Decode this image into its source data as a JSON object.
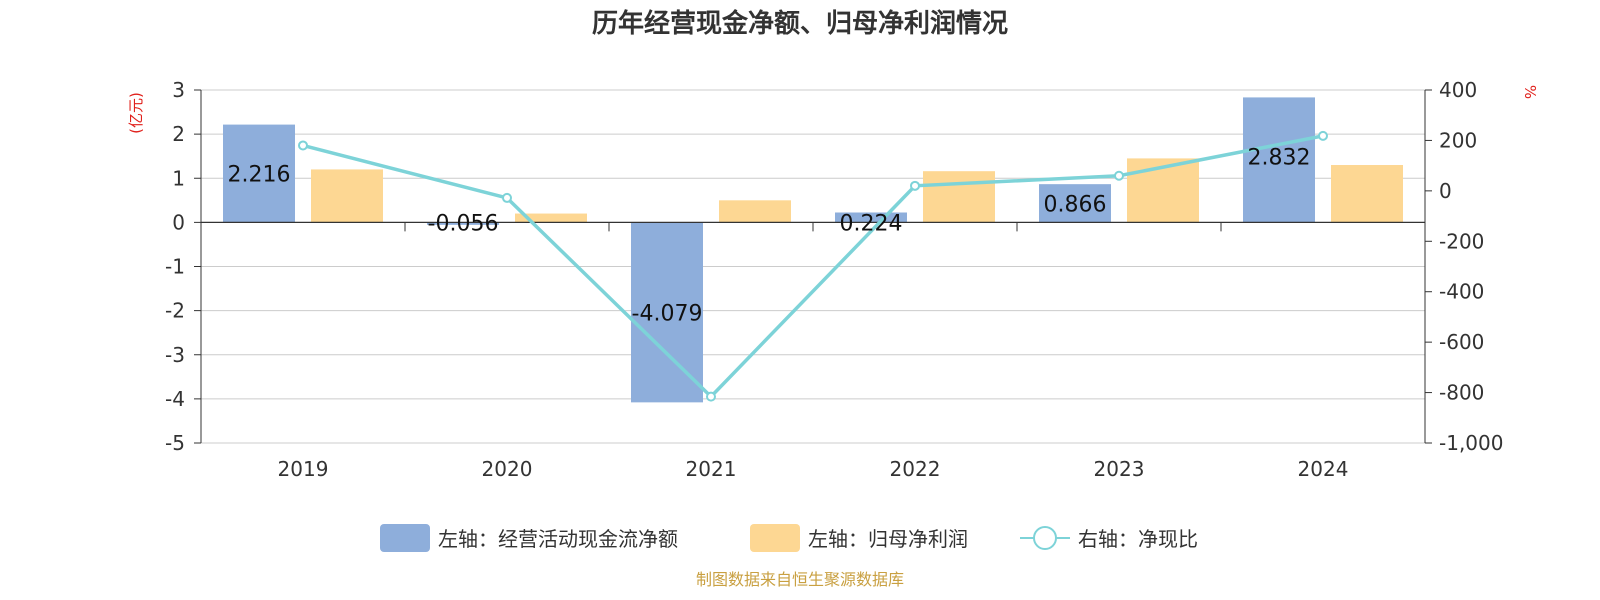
{
  "chart_data": {
    "type": "bar",
    "title": "历年经营现金净额、归母净利润情况",
    "categories": [
      "2019",
      "2020",
      "2021",
      "2022",
      "2023",
      "2024"
    ],
    "series": [
      {
        "name": "左轴：经营活动现金流净额",
        "axis": "left",
        "type": "bar",
        "values": [
          2.216,
          -0.056,
          -4.079,
          0.224,
          0.866,
          2.832
        ],
        "labels": [
          "2.216",
          "-0.056",
          "-4.079",
          "0.224",
          "0.866",
          "2.832"
        ]
      },
      {
        "name": "左轴：归母净利润",
        "axis": "left",
        "type": "bar",
        "values": [
          1.2,
          0.2,
          0.5,
          1.16,
          1.45,
          1.3
        ]
      },
      {
        "name": "右轴：净现比",
        "axis": "right",
        "type": "line",
        "values": [
          180,
          -28,
          -816,
          20,
          60,
          218
        ]
      }
    ],
    "left_axis": {
      "label": "(亿元)",
      "ylim": [
        -5,
        3
      ],
      "ticks": [
        "3",
        "2",
        "1",
        "0",
        "-1",
        "-2",
        "-3",
        "-4",
        "-5"
      ]
    },
    "right_axis": {
      "label": "%",
      "ylim": [
        -1000,
        400
      ],
      "ticks": [
        "400",
        "200",
        "0",
        "-200",
        "-400",
        "-600",
        "-800",
        "-1,000"
      ]
    },
    "colors": {
      "cashflow": "#8eaedb",
      "profit": "#fdd793",
      "ratio": "#7dd3d8",
      "axis_label": "#e0201b",
      "source": "#c9a041"
    },
    "grid": true,
    "legend_position": "bottom",
    "source": "制图数据来自恒生聚源数据库"
  }
}
